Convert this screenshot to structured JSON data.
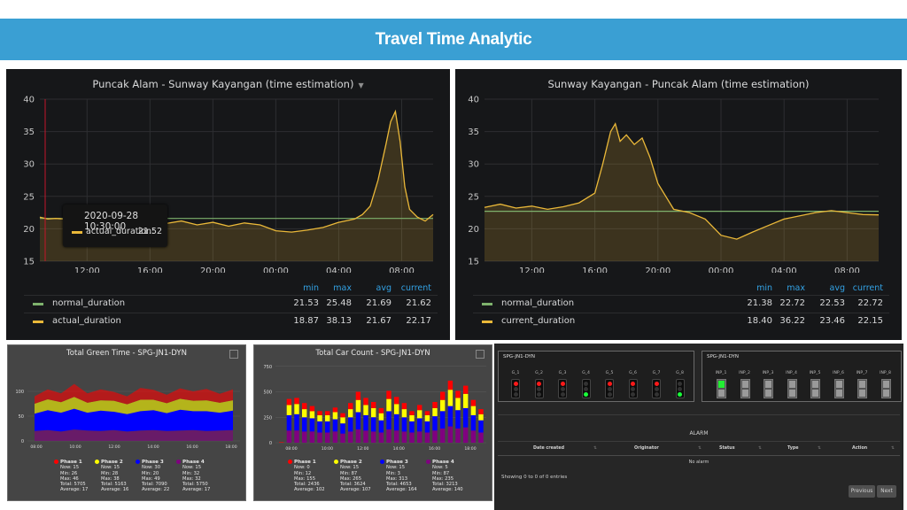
{
  "header": {
    "title": "Travel Time Analytic"
  },
  "colors": {
    "banner": "#3a9fd3",
    "normal_series": "#7eb26d",
    "actual_series": "#eab839",
    "legend_header": "#33a2e5"
  },
  "grafana_panels": [
    {
      "title": "Puncak Alam - Sunway Kayangan (time estimation)",
      "has_dropdown": true,
      "y_ticks": [
        "40",
        "35",
        "30",
        "25",
        "20",
        "15"
      ],
      "x_ticks": [
        "12:00",
        "16:00",
        "20:00",
        "00:00",
        "04:00",
        "08:00"
      ],
      "legend_headers": [
        "min",
        "max",
        "avg",
        "current"
      ],
      "legend": [
        {
          "name": "normal_duration",
          "values": [
            "21.53",
            "25.48",
            "21.69",
            "21.62"
          ],
          "color": "#7eb26d"
        },
        {
          "name": "actual_duration",
          "values": [
            "18.87",
            "38.13",
            "21.67",
            "22.17"
          ],
          "color": "#eab839"
        }
      ],
      "tooltip": {
        "time": "2020-09-28 10:30:00",
        "series": "actual_duration:",
        "value": "21.52"
      }
    },
    {
      "title": "Sunway Kayangan - Puncak Alam (time estimation)",
      "has_dropdown": false,
      "y_ticks": [
        "40",
        "35",
        "30",
        "25",
        "20",
        "15"
      ],
      "x_ticks": [
        "12:00",
        "16:00",
        "20:00",
        "00:00",
        "04:00",
        "08:00"
      ],
      "legend_headers": [
        "min",
        "max",
        "avg",
        "current"
      ],
      "legend": [
        {
          "name": "normal_duration",
          "values": [
            "21.38",
            "22.72",
            "22.53",
            "22.72"
          ],
          "color": "#7eb26d"
        },
        {
          "name": "current_duration",
          "values": [
            "18.40",
            "36.22",
            "23.46",
            "22.15"
          ],
          "color": "#eab839"
        }
      ]
    }
  ],
  "chart_data": [
    {
      "type": "line",
      "title": "Puncak Alam - Sunway Kayangan (time estimation)",
      "x_range": [
        "09:00",
        "10:00"
      ],
      "ylim": [
        15,
        40
      ],
      "x_hours": [
        9.0,
        9.5,
        10.0,
        10.5,
        11.0,
        12.0,
        13.0,
        14.0,
        15.0,
        16.0,
        17.0,
        18.0,
        19.0,
        20.0,
        21.0,
        22.0,
        23.0,
        24.0,
        25.0,
        26.0,
        27.0,
        28.0,
        29.0,
        29.5,
        30.0,
        30.5,
        31.0,
        31.3,
        31.6,
        31.9,
        32.2,
        32.5,
        33.0,
        33.5,
        34.0
      ],
      "series": [
        {
          "name": "actual_duration",
          "values": [
            21.8,
            21.5,
            21.6,
            21.52,
            22.5,
            20.9,
            21.6,
            21.1,
            21.3,
            21.5,
            20.8,
            21.2,
            20.6,
            21.0,
            20.4,
            20.9,
            20.6,
            19.7,
            19.5,
            19.8,
            20.2,
            21.0,
            21.5,
            22.2,
            23.5,
            27.5,
            33.0,
            36.5,
            38.1,
            33.5,
            26.5,
            23.0,
            21.8,
            21.2,
            22.2
          ]
        },
        {
          "name": "normal_duration",
          "values": [
            21.6,
            21.6,
            21.6,
            21.6,
            21.6,
            21.6,
            21.6,
            21.6,
            21.6,
            21.6,
            21.6,
            21.6,
            21.6,
            21.6,
            21.6,
            21.6,
            21.6,
            21.6,
            21.6,
            21.6,
            21.6,
            21.6,
            21.6,
            21.6,
            21.6,
            21.6,
            21.6,
            21.6,
            21.6,
            21.6,
            21.6,
            21.6,
            21.6,
            21.6,
            21.6
          ]
        }
      ]
    },
    {
      "type": "line",
      "title": "Sunway Kayangan - Puncak Alam (time estimation)",
      "ylim": [
        15,
        40
      ],
      "x_hours": [
        9.0,
        10.0,
        11.0,
        12.0,
        13.0,
        14.0,
        15.0,
        16.0,
        16.5,
        17.0,
        17.3,
        17.6,
        18.0,
        18.5,
        19.0,
        19.5,
        20.0,
        20.5,
        21.0,
        22.0,
        23.0,
        24.0,
        25.0,
        26.0,
        27.0,
        28.0,
        29.0,
        30.0,
        31.0,
        32.0,
        33.0,
        34.0
      ],
      "series": [
        {
          "name": "current_duration",
          "values": [
            23.3,
            23.8,
            23.2,
            23.5,
            23.0,
            23.4,
            24.0,
            25.5,
            30.0,
            35.0,
            36.2,
            33.5,
            34.5,
            33.0,
            34.0,
            31.0,
            27.0,
            25.0,
            23.0,
            22.5,
            21.5,
            19.0,
            18.4,
            19.5,
            20.5,
            21.5,
            22.0,
            22.5,
            22.8,
            22.5,
            22.2,
            22.15
          ]
        },
        {
          "name": "normal_duration",
          "values": [
            22.7,
            22.7,
            22.7,
            22.7,
            22.7,
            22.7,
            22.7,
            22.7,
            22.7,
            22.7,
            22.7,
            22.7,
            22.7,
            22.7,
            22.7,
            22.7,
            22.7,
            22.7,
            22.7,
            22.7,
            22.7,
            22.7,
            22.7,
            22.7,
            22.7,
            22.7,
            22.7,
            22.7,
            22.7,
            22.7,
            22.7,
            22.7
          ]
        }
      ]
    },
    {
      "type": "area",
      "title": "Total Green Time - SPG-JN1-DYN",
      "ylim": [
        0,
        150
      ],
      "y_ticks": [
        "100",
        "50",
        "0"
      ],
      "x_ticks": [
        "08:00",
        "10:00",
        "12:00",
        "14:00",
        "16:00",
        "18:00"
      ],
      "series": [
        {
          "name": "Phase 1",
          "color": "#ff0000",
          "values": [
            15,
            20,
            18,
            26,
            19,
            22,
            18,
            16,
            24,
            20,
            17,
            21,
            19,
            23,
            18,
            22
          ]
        },
        {
          "name": "Phase 2",
          "color": "#ffff00",
          "values": [
            20,
            22,
            21,
            24,
            20,
            21,
            22,
            20,
            23,
            21,
            20,
            22,
            21,
            22,
            20,
            21
          ]
        },
        {
          "name": "Phase 3",
          "color": "#0000ff",
          "values": [
            35,
            40,
            38,
            42,
            36,
            41,
            37,
            35,
            39,
            40,
            36,
            42,
            38,
            40,
            36,
            39
          ]
        },
        {
          "name": "Phase 4",
          "color": "#800080",
          "values": [
            20,
            22,
            19,
            23,
            21,
            20,
            22,
            19,
            21,
            22,
            20,
            21,
            22,
            20,
            21,
            22
          ]
        }
      ]
    },
    {
      "type": "bar",
      "title": "Total Car Count - SPG-JN1-DYN",
      "ylim": [
        0,
        800
      ],
      "y_ticks": [
        "750",
        "500",
        "250",
        "0"
      ],
      "x_ticks": [
        "08:00",
        "10:00",
        "12:00",
        "14:00",
        "16:00",
        "18:00"
      ],
      "series": [
        {
          "name": "Phase 1",
          "color": "#ff0000",
          "values": [
            5,
            60,
            60,
            60,
            50,
            40,
            40,
            45,
            40,
            60,
            80,
            70,
            60,
            50,
            80,
            70,
            60,
            40,
            50,
            40,
            60,
            80,
            90,
            70,
            80,
            60,
            50
          ]
        },
        {
          "name": "Phase 2",
          "color": "#ffff00",
          "values": [
            0,
            100,
            100,
            80,
            70,
            60,
            60,
            70,
            60,
            80,
            120,
            100,
            90,
            70,
            120,
            100,
            80,
            60,
            80,
            60,
            80,
            110,
            160,
            120,
            140,
            90,
            60
          ]
        },
        {
          "name": "Phase 3",
          "color": "#0000ff",
          "values": [
            0,
            150,
            160,
            140,
            130,
            110,
            110,
            120,
            100,
            140,
            170,
            150,
            140,
            120,
            180,
            160,
            140,
            110,
            130,
            110,
            140,
            170,
            200,
            180,
            190,
            150,
            120
          ]
        },
        {
          "name": "Phase 4",
          "color": "#800080",
          "values": [
            0,
            120,
            120,
            110,
            110,
            100,
            100,
            110,
            90,
            110,
            130,
            120,
            110,
            100,
            130,
            120,
            110,
            100,
            110,
            100,
            120,
            140,
            160,
            140,
            150,
            120,
            100
          ]
        }
      ]
    }
  ],
  "green_time_panel": {
    "title": "Total Green Time - SPG-JN1-DYN",
    "y_ticks": [
      "100",
      "50",
      "0"
    ],
    "x_ticks": [
      "08:00",
      "10:00",
      "12:00",
      "14:00",
      "16:00",
      "18:00"
    ],
    "phases": [
      {
        "name": "Phase 1",
        "color": "#ff0000",
        "lines": [
          "Now: 15",
          "Min: 26",
          "Max: 46",
          "Total: 5705",
          "Average: 17"
        ]
      },
      {
        "name": "Phase 2",
        "color": "#ffff00",
        "lines": [
          "Now: 15",
          "Min: 28",
          "Max: 38",
          "Total: 5163",
          "Average: 16"
        ]
      },
      {
        "name": "Phase 3",
        "color": "#0000ff",
        "lines": [
          "Now: 30",
          "Min: 20",
          "Max: 49",
          "Total: 7090",
          "Average: 22"
        ]
      },
      {
        "name": "Phase 4",
        "color": "#800080",
        "lines": [
          "Now: 15",
          "Min: 32",
          "Max: 32",
          "Total: 5750",
          "Average: 17"
        ]
      }
    ]
  },
  "car_count_panel": {
    "title": "Total Car Count - SPG-JN1-DYN",
    "y_ticks": [
      "750",
      "500",
      "250",
      "0"
    ],
    "x_ticks": [
      "08:00",
      "10:00",
      "12:00",
      "14:00",
      "16:00",
      "18:00"
    ],
    "phases": [
      {
        "name": "Phase 1",
        "color": "#ff0000",
        "lines": [
          "Now: 0",
          "Min: 12",
          "Max: 155",
          "Total: 2436",
          "Average: 102"
        ]
      },
      {
        "name": "Phase 2",
        "color": "#ffff00",
        "lines": [
          "Now: 15",
          "Min: 87",
          "Max: 265",
          "Total: 3624",
          "Average: 107"
        ]
      },
      {
        "name": "Phase 3",
        "color": "#0000ff",
        "lines": [
          "Now: 15",
          "Min: 3",
          "Max: 313",
          "Total: 4653",
          "Average: 164"
        ]
      },
      {
        "name": "Phase 4",
        "color": "#800080",
        "lines": [
          "Now: 5",
          "Min: 87",
          "Max: 235",
          "Total: 3213",
          "Average: 140"
        ]
      }
    ]
  },
  "controller_panel": {
    "groups_label": "SPG-JN1-DYN",
    "groups": [
      "G_1",
      "G_2",
      "G_3",
      "G_4",
      "G_5",
      "G_6",
      "G_7",
      "G_8"
    ],
    "group_states": [
      "red",
      "red",
      "red",
      "green",
      "red",
      "red",
      "red",
      "green"
    ],
    "inputs_label": "SPG-JN1-DYN",
    "inputs": [
      "INP_1",
      "INP_2",
      "INP_3",
      "INP_4",
      "INP_5",
      "INP_6",
      "INP_7",
      "INP_8"
    ],
    "input_states": [
      "on",
      "off",
      "off",
      "off",
      "off",
      "off",
      "off",
      "off"
    ],
    "alarm": {
      "title": "ALARM",
      "columns": [
        "Date created",
        "Originator",
        "Status",
        "Type",
        "Action"
      ],
      "empty_text": "No alarm",
      "entries_text": "Showing 0 to 0 of 0 entries",
      "prev_label": "Previous",
      "next_label": "Next"
    }
  }
}
